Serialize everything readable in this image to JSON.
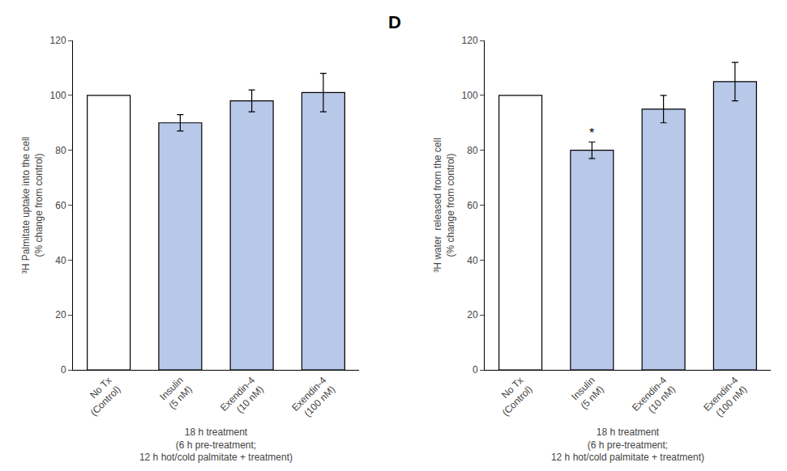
{
  "chart_data": [
    {
      "type": "bar",
      "xlabel": "18 h treatment\n(6 h pre-treatment;\n12 h hot/cold palmitate + treatment)",
      "ylabel": "³H Palmitate uptake into the cell\n(% change from control)",
      "categories": [
        "No Tx\n(Control)",
        "Insulin\n(5 nM)",
        "Exendin-4\n(10 nM)",
        "Exendin-4\n(100 nM)"
      ],
      "values": [
        100,
        90,
        98,
        101
      ],
      "errors": [
        0,
        3,
        4,
        7
      ],
      "colors": [
        "white",
        "#b8c8e8",
        "#b8c8e8",
        "#b8c8e8"
      ],
      "ylim": [
        0,
        120
      ],
      "yticks": [
        0,
        20,
        40,
        60,
        80,
        100,
        120
      ],
      "grid": false
    },
    {
      "type": "bar",
      "xlabel": "18 h treatment\n(6 h pre-treatment;\n12 h hot/cold palmitate + treatment)",
      "ylabel": "³H water  released from the cell\n(% change from control)",
      "categories": [
        "No Tx\n(Control)",
        "Insulin\n(5 nM)",
        "Exendin-4\n(10 nM)",
        "Exendin-4\n(100 nM)"
      ],
      "values": [
        100,
        80,
        95,
        105
      ],
      "errors": [
        0,
        3,
        5,
        7
      ],
      "colors": [
        "white",
        "#b8c8e8",
        "#b8c8e8",
        "#b8c8e8"
      ],
      "ylim": [
        0,
        120
      ],
      "yticks": [
        0,
        20,
        40,
        60,
        80,
        100,
        120
      ],
      "grid": false,
      "annotations": [
        {
          "text": "D"
        },
        {
          "text": "*",
          "category": "Insulin\n(5 nM)"
        }
      ]
    }
  ]
}
